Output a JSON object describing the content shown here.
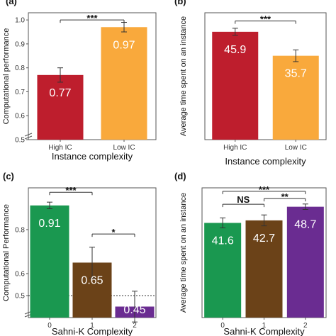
{
  "chart_data": [
    {
      "panel_label": "(a)",
      "type": "bar",
      "categories": [
        "High IC",
        "Low IC"
      ],
      "values": [
        0.77,
        0.97
      ],
      "value_labels": [
        "0.77",
        "0.97"
      ],
      "errors": [
        0.03,
        0.02
      ],
      "colors": [
        "#be1e2d",
        "#f9a93c"
      ],
      "xlabel": "Instance complexity",
      "ylabel": "Computational performance",
      "ylim": [
        0.5,
        1.03
      ],
      "yticks": [
        "0.5",
        "0.6",
        "0.7",
        "0.8",
        "0.9",
        "1.0"
      ],
      "yticks_values": [
        0.5,
        0.6,
        0.7,
        0.8,
        0.9,
        1.0
      ],
      "axis_break": true,
      "significance": [
        {
          "from": 0,
          "to": 1,
          "label": "***",
          "level": 1.0
        }
      ]
    },
    {
      "panel_label": "(b)",
      "type": "bar",
      "categories": [
        "High IC",
        "Low IC"
      ],
      "values": [
        45.9,
        35.7
      ],
      "value_labels": [
        "45.9",
        "35.7"
      ],
      "errors": [
        1.5,
        2.5
      ],
      "colors": [
        "#be1e2d",
        "#f9a93c"
      ],
      "xlabel": "Instance complexity",
      "ylabel": "Average time spent on an instance",
      "ylim": [
        0,
        54
      ],
      "yticks": [],
      "yticks_values": [],
      "axis_break": false,
      "significance": [
        {
          "from": 0,
          "to": 1,
          "label": "***",
          "level": 50.5
        }
      ]
    },
    {
      "panel_label": "(c)",
      "type": "bar",
      "categories": [
        "0",
        "1",
        "2"
      ],
      "values": [
        0.91,
        0.65,
        0.45
      ],
      "value_labels": [
        "0.91",
        "0.65",
        "0.45"
      ],
      "errors": [
        0.015,
        0.07,
        0.07
      ],
      "colors": [
        "#1a9850",
        "#6b4218",
        "#6a2c91"
      ],
      "xlabel": "Sahni-K Complexity",
      "ylabel": "Computational Performance",
      "ylim": [
        0.4,
        0.99
      ],
      "yticks": [
        "0.5",
        "0.6",
        "0.8",
        "1.0"
      ],
      "yticks_values": [
        0.5,
        0.6,
        0.8,
        1.0
      ],
      "axis_break": true,
      "reference_line": 0.5,
      "significance": [
        {
          "from": 0,
          "to": 1,
          "label": "***",
          "level": 0.97
        },
        {
          "from": 1,
          "to": 2,
          "label": "*",
          "level": 0.78
        }
      ]
    },
    {
      "panel_label": "(d)",
      "type": "bar",
      "categories": [
        "0",
        "1",
        "2"
      ],
      "values": [
        41.6,
        42.7,
        48.7
      ],
      "value_labels": [
        "41.6",
        "42.7",
        "48.7"
      ],
      "errors": [
        2.2,
        2.4,
        1.2
      ],
      "colors": [
        "#1a9850",
        "#6b4218",
        "#6a2c91"
      ],
      "xlabel": "Sahni-K Complexity",
      "ylabel": "Average time spent on an instance",
      "ylim": [
        0,
        57
      ],
      "yticks": [],
      "yticks_values": [],
      "axis_break": false,
      "significance": [
        {
          "from": 0,
          "to": 2,
          "label": "***",
          "level": 55.5
        },
        {
          "from": 0,
          "to": 1,
          "label": "NS",
          "level": 49.8
        },
        {
          "from": 1,
          "to": 2,
          "label": "**",
          "level": 52.3
        }
      ]
    }
  ]
}
